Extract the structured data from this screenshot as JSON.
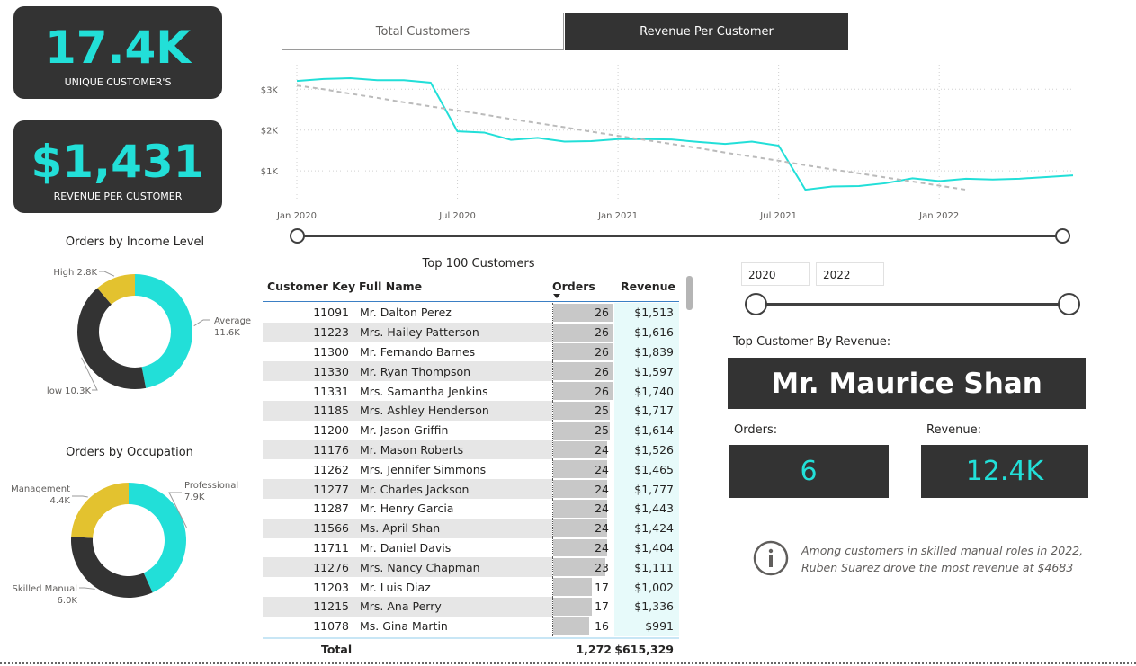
{
  "kpis": {
    "unique_customers": {
      "value": "17.4K",
      "label": "UNIQUE CUSTOMER'S"
    },
    "revenue_per_customer": {
      "value": "$1,431",
      "label": "REVENUE PER CUSTOMER"
    }
  },
  "tabs": [
    {
      "label": "Total Customers",
      "active": false
    },
    {
      "label": "Revenue Per Customer",
      "active": true
    }
  ],
  "colors": {
    "accent": "#22dfd8",
    "dark": "#333333",
    "trend": "#bbbbbb",
    "bar": "#c8c8c8",
    "donut_gold": "#e3c22f"
  },
  "chart_data": [
    {
      "type": "line",
      "title": "",
      "xlabel": "",
      "ylabel": "",
      "x_ticks": [
        "Jan 2020",
        "Jul 2020",
        "Jan 2021",
        "Jul 2021",
        "Jan 2022"
      ],
      "y_ticks": [
        "$1K",
        "$2K",
        "$3K"
      ],
      "ylim": [
        300,
        3600
      ],
      "grid": true,
      "x": [
        "2020-01",
        "2020-02",
        "2020-03",
        "2020-04",
        "2020-05",
        "2020-06",
        "2020-07",
        "2020-08",
        "2020-09",
        "2020-10",
        "2020-11",
        "2020-12",
        "2021-01",
        "2021-02",
        "2021-03",
        "2021-04",
        "2021-05",
        "2021-06",
        "2021-07",
        "2021-08",
        "2021-09",
        "2021-10",
        "2021-11",
        "2021-12",
        "2022-01",
        "2022-02",
        "2022-03",
        "2022-04",
        "2022-05",
        "2022-06"
      ],
      "series": [
        {
          "values": [
            3200,
            3250,
            3270,
            3220,
            3220,
            3160,
            1970,
            1940,
            1760,
            1810,
            1720,
            1730,
            1780,
            1780,
            1770,
            1710,
            1660,
            1720,
            1620,
            540,
            620,
            630,
            700,
            820,
            750,
            810,
            790,
            810,
            850,
            890
          ]
        },
        {
          "values": [
            3090,
            3000,
            2890,
            2790,
            2680,
            2580,
            2480,
            2380,
            2270,
            2170,
            2070,
            1960,
            1860,
            1760,
            1660,
            1560,
            1450,
            1350,
            1250,
            1140,
            1040,
            940,
            840,
            740,
            640,
            540,
            null,
            null,
            null,
            null
          ],
          "style": "dashed"
        }
      ]
    },
    {
      "type": "pie",
      "title": "Orders by Income Level",
      "slices": [
        {
          "label": "Average",
          "value": 11.6,
          "display": "11.6K",
          "color": "#22dfd8"
        },
        {
          "label": "low",
          "value": 10.3,
          "display": "10.3K",
          "color": "#333333"
        },
        {
          "label": "High",
          "value": 2.8,
          "display": "2.8K",
          "color": "#e3c22f"
        }
      ]
    },
    {
      "type": "pie",
      "title": "Orders by Occupation",
      "slices": [
        {
          "label": "Professional",
          "value": 7.9,
          "display": "7.9K",
          "color": "#22dfd8"
        },
        {
          "label": "Skilled Manual",
          "value": 6.0,
          "display": "6.0K",
          "color": "#333333"
        },
        {
          "label": "Management",
          "value": 4.4,
          "display": "4.4K",
          "color": "#e3c22f"
        }
      ]
    }
  ],
  "table": {
    "title": "Top 100 Customers",
    "headers": [
      "Customer Key",
      "Full Name",
      "Orders",
      "Revenue"
    ],
    "rows": [
      {
        "key": "11091",
        "name": "Mr. Dalton Perez",
        "orders": 26,
        "revenue": "$1,513"
      },
      {
        "key": "11223",
        "name": "Mrs. Hailey Patterson",
        "orders": 26,
        "revenue": "$1,616"
      },
      {
        "key": "11300",
        "name": "Mr. Fernando Barnes",
        "orders": 26,
        "revenue": "$1,839"
      },
      {
        "key": "11330",
        "name": "Mr. Ryan Thompson",
        "orders": 26,
        "revenue": "$1,597"
      },
      {
        "key": "11331",
        "name": "Mrs. Samantha Jenkins",
        "orders": 26,
        "revenue": "$1,740"
      },
      {
        "key": "11185",
        "name": "Mrs. Ashley Henderson",
        "orders": 25,
        "revenue": "$1,717"
      },
      {
        "key": "11200",
        "name": "Mr. Jason Griffin",
        "orders": 25,
        "revenue": "$1,614"
      },
      {
        "key": "11176",
        "name": "Mr. Mason Roberts",
        "orders": 24,
        "revenue": "$1,526"
      },
      {
        "key": "11262",
        "name": "Mrs. Jennifer Simmons",
        "orders": 24,
        "revenue": "$1,465"
      },
      {
        "key": "11277",
        "name": "Mr. Charles Jackson",
        "orders": 24,
        "revenue": "$1,777"
      },
      {
        "key": "11287",
        "name": "Mr. Henry Garcia",
        "orders": 24,
        "revenue": "$1,443"
      },
      {
        "key": "11566",
        "name": "Ms. April Shan",
        "orders": 24,
        "revenue": "$1,424"
      },
      {
        "key": "11711",
        "name": "Mr. Daniel Davis",
        "orders": 24,
        "revenue": "$1,404"
      },
      {
        "key": "11276",
        "name": "Mrs. Nancy Chapman",
        "orders": 23,
        "revenue": "$1,111"
      },
      {
        "key": "11203",
        "name": "Mr. Luis Diaz",
        "orders": 17,
        "revenue": "$1,002"
      },
      {
        "key": "11215",
        "name": "Mrs. Ana Perry",
        "orders": 17,
        "revenue": "$1,336"
      },
      {
        "key": "11078",
        "name": "Ms. Gina Martin",
        "orders": 16,
        "revenue": "$991"
      }
    ],
    "total_label": "Total",
    "total_orders": "1,272",
    "total_revenue": "$615,329",
    "orders_max": 26
  },
  "date_filter": {
    "start": "2020",
    "end": "2022"
  },
  "top_customer": {
    "caption": "Top Customer By Revenue:",
    "name": "Mr. Maurice Shan",
    "orders_label": "Orders:",
    "orders_value": "6",
    "revenue_label": "Revenue:",
    "revenue_value": "12.4K"
  },
  "insight": {
    "icon": "info-icon",
    "line1": "Among customers in skilled manual roles in 2022,",
    "line2": "Ruben Suarez drove the most revenue at $4683"
  }
}
